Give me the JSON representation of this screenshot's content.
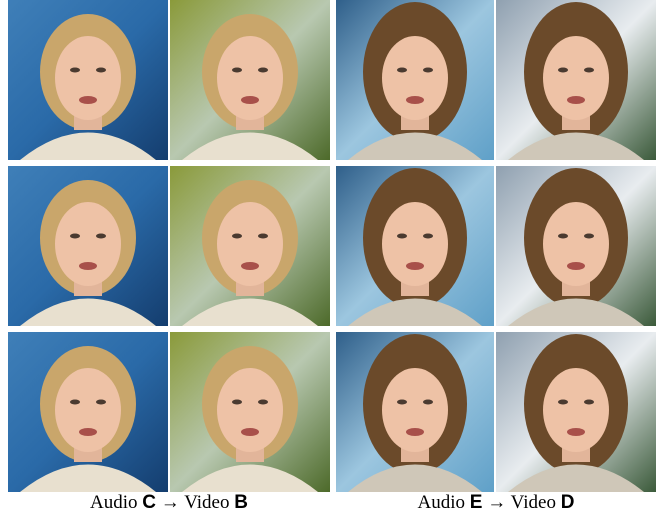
{
  "panels": [
    {
      "caption": {
        "audio_word": "Audio",
        "audio_id": "C",
        "arrow": "→",
        "video_word": "Video",
        "video_id": "B"
      }
    },
    {
      "caption": {
        "audio_word": "Audio",
        "audio_id": "E",
        "arrow": "→",
        "video_word": "Video",
        "video_id": "D"
      }
    }
  ]
}
